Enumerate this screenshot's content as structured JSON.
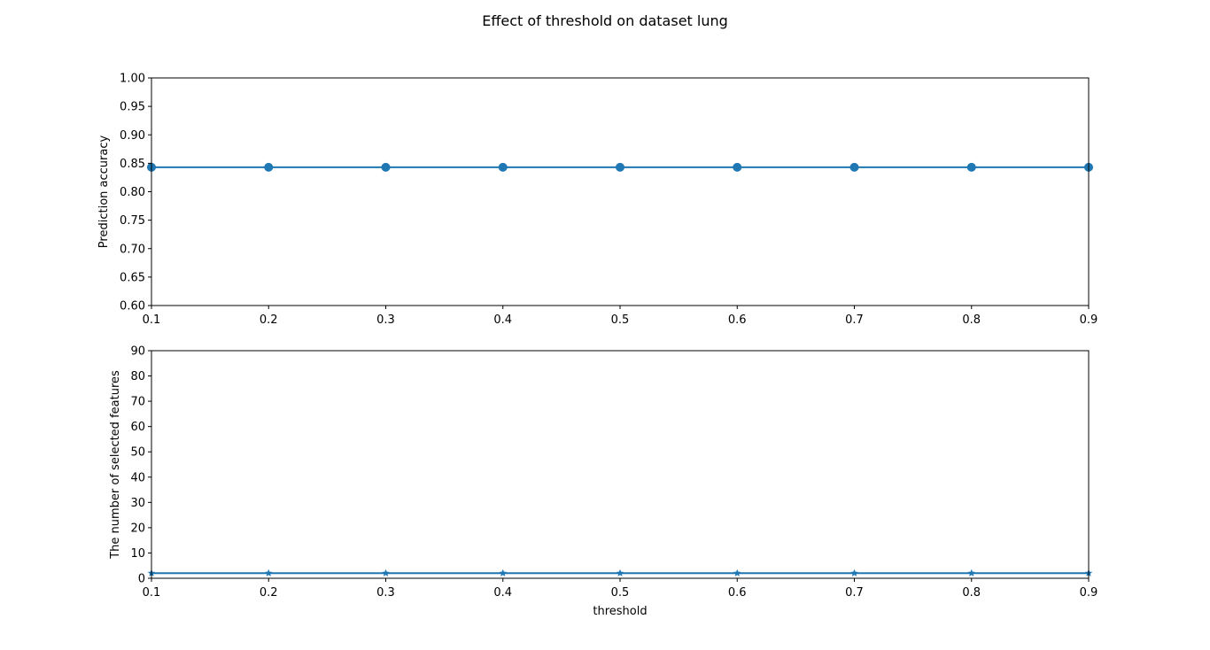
{
  "figure": {
    "title": "Effect of threshold on dataset lung"
  },
  "chart_data": [
    {
      "type": "line",
      "title": "",
      "xlabel": "",
      "ylabel": "Prediction accuracy",
      "xlim": [
        0.1,
        0.9
      ],
      "ylim": [
        0.6,
        1.0
      ],
      "x_ticks": [
        "0.1",
        "0.2",
        "0.3",
        "0.4",
        "0.5",
        "0.6",
        "0.7",
        "0.8",
        "0.9"
      ],
      "y_ticks": [
        "0.60",
        "0.65",
        "0.70",
        "0.75",
        "0.80",
        "0.85",
        "0.90",
        "0.95",
        "1.00"
      ],
      "grid": false,
      "marker": "circle",
      "color": "#1f77b4",
      "x": [
        0.1,
        0.2,
        0.3,
        0.4,
        0.5,
        0.6,
        0.7,
        0.8,
        0.9
      ],
      "series": [
        {
          "values": [
            0.843,
            0.843,
            0.843,
            0.843,
            0.843,
            0.843,
            0.843,
            0.843,
            0.843
          ]
        }
      ]
    },
    {
      "type": "line",
      "title": "",
      "xlabel": "threshold",
      "ylabel": "The number of selected features",
      "xlim": [
        0.1,
        0.9
      ],
      "ylim": [
        0,
        90
      ],
      "x_ticks": [
        "0.1",
        "0.2",
        "0.3",
        "0.4",
        "0.5",
        "0.6",
        "0.7",
        "0.8",
        "0.9"
      ],
      "y_ticks": [
        "0",
        "10",
        "20",
        "30",
        "40",
        "50",
        "60",
        "70",
        "80",
        "90"
      ],
      "grid": false,
      "marker": "star",
      "color": "#1f77b4",
      "x": [
        0.1,
        0.2,
        0.3,
        0.4,
        0.5,
        0.6,
        0.7,
        0.8,
        0.9
      ],
      "series": [
        {
          "values": [
            2,
            2,
            2,
            2,
            2,
            2,
            2,
            2,
            2
          ]
        }
      ]
    }
  ]
}
